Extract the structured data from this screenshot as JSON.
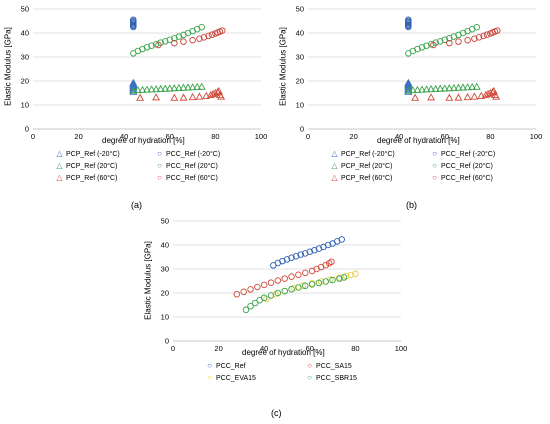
{
  "chart_data": [
    {
      "id": "a",
      "type": "scatter",
      "caption": "(a)",
      "xlabel": "degree of hydration [%]",
      "ylabel": "Elastic Modulus [GPa]",
      "xlim": [
        0,
        100
      ],
      "ylim": [
        0,
        50
      ],
      "xticks": [
        0,
        20,
        40,
        60,
        80,
        100
      ],
      "yticks": [
        0,
        10,
        20,
        30,
        40,
        50
      ],
      "grid": "horizontal",
      "legend_position": "bottom",
      "series": [
        {
          "name": "PCP_Ref (-20°C)",
          "marker": "triangle",
          "color": "#3b6fc4",
          "points": [
            [
              44,
              15.5
            ],
            [
              44,
              16.2
            ],
            [
              44,
              16.8
            ],
            [
              44,
              17.3
            ],
            [
              44,
              17.8
            ],
            [
              44,
              18.3
            ],
            [
              44,
              18.8
            ],
            [
              44,
              19.2
            ]
          ]
        },
        {
          "name": "PCC_Ref (-20°C)",
          "marker": "circle",
          "color": "#2f5fb3",
          "points": [
            [
              44,
              42.5
            ],
            [
              44,
              43.0
            ],
            [
              44,
              43.5
            ],
            [
              44,
              44.0
            ],
            [
              44,
              44.5
            ],
            [
              44,
              45.0
            ],
            [
              44,
              45.5
            ]
          ]
        },
        {
          "name": "PCP_Ref (20°C)",
          "marker": "triangle",
          "color": "#3aa34b",
          "points": [
            [
              44,
              16
            ],
            [
              46,
              16.2
            ],
            [
              48,
              16.3
            ],
            [
              50,
              16.4
            ],
            [
              52,
              16.5
            ],
            [
              54,
              16.6
            ],
            [
              56,
              16.7
            ],
            [
              58,
              16.8
            ],
            [
              60,
              16.9
            ],
            [
              62,
              17
            ],
            [
              64,
              17.1
            ],
            [
              66,
              17.2
            ],
            [
              68,
              17.3
            ],
            [
              70,
              17.4
            ],
            [
              72,
              17.5
            ],
            [
              74,
              17.6
            ]
          ]
        },
        {
          "name": "PCC_Ref (20°C)",
          "marker": "circle",
          "color": "#3aa34b",
          "points": [
            [
              44,
              31.5
            ],
            [
              46,
              32.5
            ],
            [
              48,
              33.3
            ],
            [
              50,
              34
            ],
            [
              52,
              34.7
            ],
            [
              54,
              35.3
            ],
            [
              56,
              36
            ],
            [
              58,
              36.5
            ],
            [
              60,
              37.2
            ],
            [
              62,
              37.8
            ],
            [
              64,
              38.5
            ],
            [
              66,
              39.2
            ],
            [
              68,
              40
            ],
            [
              70,
              40.8
            ],
            [
              72,
              41.6
            ],
            [
              74,
              42.4
            ]
          ]
        },
        {
          "name": "PCP_Ref (60°C)",
          "marker": "triangle",
          "color": "#d24a3b",
          "points": [
            [
              47,
              13
            ],
            [
              54,
              13.2
            ],
            [
              62,
              13
            ],
            [
              66,
              13.1
            ],
            [
              70,
              13.3
            ],
            [
              73,
              13.5
            ],
            [
              76,
              13.8
            ],
            [
              78,
              14.2
            ],
            [
              79,
              14.6
            ],
            [
              80,
              15
            ],
            [
              81,
              15.4
            ],
            [
              81.5,
              15.8
            ],
            [
              82,
              14.2
            ],
            [
              82.5,
              13.5
            ]
          ]
        },
        {
          "name": "PCC_Ref (60°C)",
          "marker": "circle",
          "color": "#c8453a",
          "points": [
            [
              55,
              35
            ],
            [
              62,
              35.8
            ],
            [
              66,
              36.4
            ],
            [
              70,
              37
            ],
            [
              73,
              37.6
            ],
            [
              75,
              38.2
            ],
            [
              77,
              38.8
            ],
            [
              78.5,
              39.3
            ],
            [
              80,
              39.8
            ],
            [
              81,
              40.2
            ],
            [
              82,
              40.6
            ],
            [
              83,
              41
            ]
          ]
        }
      ]
    },
    {
      "id": "b",
      "type": "scatter",
      "caption": "(b)",
      "xlabel": "degree of hydration [%]",
      "ylabel": "Elastic Modulus [GPa]",
      "xlim": [
        0,
        100
      ],
      "ylim": [
        0,
        50
      ],
      "xticks": [
        0,
        20,
        40,
        60,
        80,
        100
      ],
      "yticks": [
        0,
        10,
        20,
        30,
        40,
        50
      ],
      "grid": "horizontal",
      "legend_position": "bottom",
      "series": [
        {
          "name": "PCP_Ref (-20°C)",
          "marker": "triangle",
          "color": "#3b6fc4",
          "points": [
            [
              44,
              15.5
            ],
            [
              44,
              16.2
            ],
            [
              44,
              16.8
            ],
            [
              44,
              17.3
            ],
            [
              44,
              17.8
            ],
            [
              44,
              18.3
            ],
            [
              44,
              18.8
            ],
            [
              44,
              19.2
            ]
          ]
        },
        {
          "name": "PCC_Ref (-20°C)",
          "marker": "circle",
          "color": "#2f5fb3",
          "points": [
            [
              44,
              42.5
            ],
            [
              44,
              43.0
            ],
            [
              44,
              43.5
            ],
            [
              44,
              44.0
            ],
            [
              44,
              44.5
            ],
            [
              44,
              45.0
            ],
            [
              44,
              45.5
            ]
          ]
        },
        {
          "name": "PCP_Ref (20°C)",
          "marker": "triangle",
          "color": "#3aa34b",
          "points": [
            [
              44,
              16
            ],
            [
              46,
              16.2
            ],
            [
              48,
              16.3
            ],
            [
              50,
              16.4
            ],
            [
              52,
              16.5
            ],
            [
              54,
              16.6
            ],
            [
              56,
              16.7
            ],
            [
              58,
              16.8
            ],
            [
              60,
              16.9
            ],
            [
              62,
              17
            ],
            [
              64,
              17.1
            ],
            [
              66,
              17.2
            ],
            [
              68,
              17.3
            ],
            [
              70,
              17.4
            ],
            [
              72,
              17.5
            ],
            [
              74,
              17.6
            ]
          ]
        },
        {
          "name": "PCC_Ref (20°C)",
          "marker": "circle",
          "color": "#3aa34b",
          "points": [
            [
              44,
              31.5
            ],
            [
              46,
              32.5
            ],
            [
              48,
              33.3
            ],
            [
              50,
              34
            ],
            [
              52,
              34.7
            ],
            [
              54,
              35.3
            ],
            [
              56,
              36
            ],
            [
              58,
              36.5
            ],
            [
              60,
              37.2
            ],
            [
              62,
              37.8
            ],
            [
              64,
              38.5
            ],
            [
              66,
              39.2
            ],
            [
              68,
              40
            ],
            [
              70,
              40.8
            ],
            [
              72,
              41.6
            ],
            [
              74,
              42.4
            ]
          ]
        },
        {
          "name": "PCP_Ref (60°C)",
          "marker": "triangle",
          "color": "#d24a3b",
          "points": [
            [
              47,
              13
            ],
            [
              54,
              13.2
            ],
            [
              62,
              13
            ],
            [
              66,
              13.1
            ],
            [
              70,
              13.3
            ],
            [
              73,
              13.5
            ],
            [
              76,
              13.8
            ],
            [
              78,
              14.2
            ],
            [
              79,
              14.6
            ],
            [
              80,
              15
            ],
            [
              81,
              15.4
            ],
            [
              81.5,
              15.8
            ],
            [
              82,
              14.2
            ],
            [
              82.5,
              13.5
            ]
          ]
        },
        {
          "name": "PCC_Ref (60°C)",
          "marker": "circle",
          "color": "#c8453a",
          "points": [
            [
              55,
              35
            ],
            [
              62,
              35.8
            ],
            [
              66,
              36.4
            ],
            [
              70,
              37
            ],
            [
              73,
              37.6
            ],
            [
              75,
              38.2
            ],
            [
              77,
              38.8
            ],
            [
              78.5,
              39.3
            ],
            [
              80,
              39.8
            ],
            [
              81,
              40.2
            ],
            [
              82,
              40.6
            ],
            [
              83,
              41
            ]
          ]
        }
      ]
    },
    {
      "id": "c",
      "type": "scatter",
      "caption": "(c)",
      "xlabel": "degree of hydration [%]",
      "ylabel": "Elastic Modulus [GPa]",
      "xlim": [
        0,
        100
      ],
      "ylim": [
        0,
        50
      ],
      "xticks": [
        0,
        20,
        40,
        60,
        80,
        100
      ],
      "yticks": [
        0,
        10,
        20,
        30,
        40,
        50
      ],
      "grid": "horizontal",
      "legend_position": "bottom",
      "series": [
        {
          "name": "PCC_Ref",
          "marker": "circle",
          "color": "#2f5fb3",
          "points": [
            [
              44,
              31.5
            ],
            [
              46,
              32.5
            ],
            [
              48,
              33.3
            ],
            [
              50,
              34
            ],
            [
              52,
              34.7
            ],
            [
              54,
              35.3
            ],
            [
              56,
              36
            ],
            [
              58,
              36.5
            ],
            [
              60,
              37.2
            ],
            [
              62,
              37.8
            ],
            [
              64,
              38.5
            ],
            [
              66,
              39.2
            ],
            [
              68,
              40
            ],
            [
              70,
              40.6
            ],
            [
              72,
              41.5
            ],
            [
              74,
              42.3
            ]
          ]
        },
        {
          "name": "PCC_SA15",
          "marker": "circle",
          "color": "#d24a3b",
          "points": [
            [
              28,
              19.5
            ],
            [
              31,
              20.5
            ],
            [
              34,
              21.5
            ],
            [
              37,
              22.5
            ],
            [
              40,
              23.4
            ],
            [
              43,
              24.3
            ],
            [
              46,
              25.2
            ],
            [
              49,
              26
            ],
            [
              52,
              26.8
            ],
            [
              55,
              27.6
            ],
            [
              58,
              28.4
            ],
            [
              61,
              29.2
            ],
            [
              63,
              30
            ],
            [
              65,
              30.8
            ],
            [
              67,
              31.6
            ],
            [
              68.5,
              32.4
            ],
            [
              69.5,
              33
            ]
          ]
        },
        {
          "name": "PCC_EVA15",
          "marker": "circle",
          "color": "#e8d23a",
          "points": [
            [
              41,
              17.5
            ],
            [
              45,
              19.5
            ],
            [
              49,
              20.8
            ],
            [
              53,
              22
            ],
            [
              57,
              23
            ],
            [
              61,
              24
            ],
            [
              65,
              24.8
            ],
            [
              69,
              25.6
            ],
            [
              73,
              26.4
            ],
            [
              76,
              27
            ],
            [
              78,
              27.5
            ],
            [
              80,
              28
            ]
          ]
        },
        {
          "name": "PCC_SBR15",
          "marker": "circle",
          "color": "#3aa34b",
          "points": [
            [
              32,
              13
            ],
            [
              34,
              14.5
            ],
            [
              36,
              15.8
            ],
            [
              38,
              17
            ],
            [
              40,
              18
            ],
            [
              43,
              19
            ],
            [
              46,
              20
            ],
            [
              49,
              20.8
            ],
            [
              52,
              21.6
            ],
            [
              55,
              22.3
            ],
            [
              58,
              23
            ],
            [
              61,
              23.6
            ],
            [
              64,
              24.2
            ],
            [
              67,
              24.8
            ],
            [
              70,
              25.4
            ],
            [
              73,
              26
            ],
            [
              75,
              26.5
            ]
          ]
        }
      ]
    }
  ]
}
